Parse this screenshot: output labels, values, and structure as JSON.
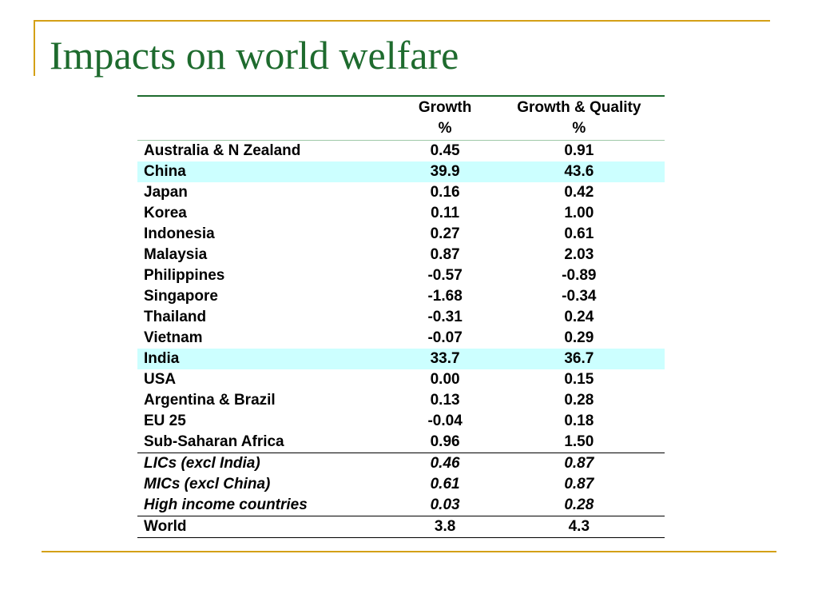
{
  "title": "Impacts on world welfare",
  "table": {
    "headers": {
      "region": "",
      "growth": [
        "Growth",
        "%"
      ],
      "growth_quality": [
        "Growth & Quality",
        "%"
      ]
    },
    "rows": [
      {
        "region": "Australia & N Zealand",
        "growth": "0.45",
        "growth_quality": "0.91"
      },
      {
        "region": "China",
        "growth": "39.9",
        "growth_quality": "43.6"
      },
      {
        "region": "Japan",
        "growth": "0.16",
        "growth_quality": "0.42"
      },
      {
        "region": "Korea",
        "growth": "0.11",
        "growth_quality": "1.00"
      },
      {
        "region": "Indonesia",
        "growth": "0.27",
        "growth_quality": "0.61"
      },
      {
        "region": "Malaysia",
        "growth": "0.87",
        "growth_quality": "2.03"
      },
      {
        "region": "Philippines",
        "growth": "-0.57",
        "growth_quality": "-0.89"
      },
      {
        "region": "Singapore",
        "growth": "-1.68",
        "growth_quality": "-0.34"
      },
      {
        "region": "Thailand",
        "growth": "-0.31",
        "growth_quality": "0.24"
      },
      {
        "region": "Vietnam",
        "growth": "-0.07",
        "growth_quality": "0.29"
      },
      {
        "region": "India",
        "growth": "33.7",
        "growth_quality": "36.7"
      },
      {
        "region": "USA",
        "growth": "0.00",
        "growth_quality": "0.15"
      },
      {
        "region": "Argentina & Brazil",
        "growth": "0.13",
        "growth_quality": "0.28"
      },
      {
        "region": "EU 25",
        "growth": "-0.04",
        "growth_quality": "0.18"
      },
      {
        "region": "Sub-Saharan Africa",
        "growth": "0.96",
        "growth_quality": "1.50"
      }
    ],
    "groups": [
      {
        "region": "LICs (excl India)",
        "growth": "0.46",
        "growth_quality": "0.87"
      },
      {
        "region": "MICs (excl China)",
        "growth": "0.61",
        "growth_quality": "0.87"
      },
      {
        "region": "High income countries",
        "growth": "0.03",
        "growth_quality": "0.28"
      }
    ],
    "world": {
      "region": "World",
      "growth": "3.8",
      "growth_quality": "4.3"
    },
    "highlight_color": "#ccffff"
  },
  "colors": {
    "title": "#1e6b2e",
    "accent_lines": "#d4a017"
  }
}
